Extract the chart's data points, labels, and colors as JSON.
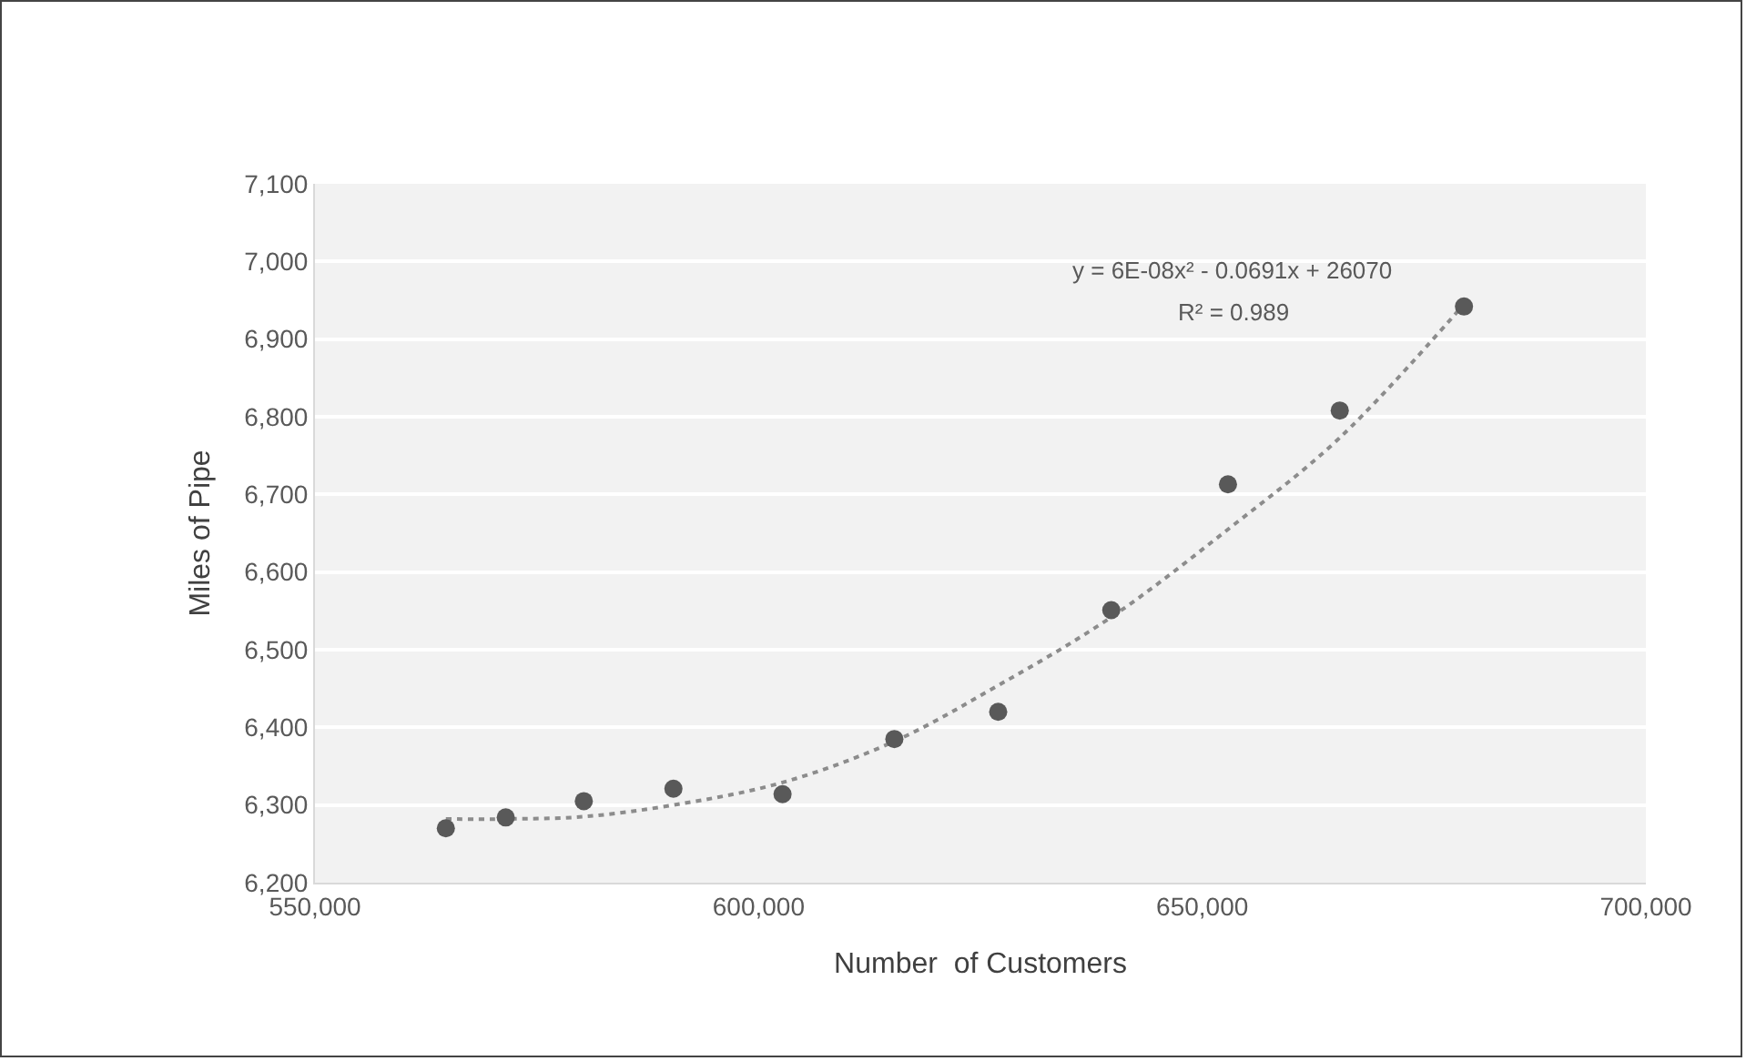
{
  "chart_data": {
    "type": "scatter",
    "xlabel": "Number  of Customers",
    "ylabel": "Miles of Pipe",
    "annotations": [
      "y = 6E-08x² - 0.0691x + 26070",
      "R² = 0.989"
    ],
    "xlim": [
      550000,
      700000
    ],
    "xticks": [
      {
        "value": 550000,
        "label": "550,000"
      },
      {
        "value": 600000,
        "label": "600,000"
      },
      {
        "value": 650000,
        "label": "650,000"
      },
      {
        "value": 700000,
        "label": "700,000"
      }
    ],
    "ylim": [
      6200,
      7100
    ],
    "yticks": [
      {
        "value": 6200,
        "label": "6,200"
      },
      {
        "value": 6300,
        "label": "6,300"
      },
      {
        "value": 6400,
        "label": "6,400"
      },
      {
        "value": 6500,
        "label": "6,500"
      },
      {
        "value": 6600,
        "label": "6,600"
      },
      {
        "value": 6700,
        "label": "6,700"
      },
      {
        "value": 6800,
        "label": "6,800"
      },
      {
        "value": 6900,
        "label": "6,900"
      },
      {
        "value": 7000,
        "label": "7,000"
      },
      {
        "value": 7100,
        "label": "7,100"
      }
    ],
    "grid": "y",
    "marker": "circle",
    "series": [
      {
        "color": "#595959",
        "x": [
          564750,
          571500,
          580300,
          590400,
          602700,
          615300,
          627000,
          639750,
          652900,
          665500,
          679500
        ],
        "values": [
          6270,
          6284,
          6305,
          6321,
          6314,
          6385,
          6420,
          6551,
          6713,
          6808,
          6942
        ]
      },
      {
        "type": "line",
        "color": "#8c8c8c",
        "line_style": "dotted",
        "marker": "none",
        "x": [
          564750,
          571500,
          580300,
          590400,
          602700,
          615300,
          627000,
          639750,
          652900,
          665500,
          679500
        ],
        "values": [
          6282,
          6282,
          6285,
          6300,
          6329,
          6382,
          6454,
          6542,
          6655,
          6773,
          6945
        ]
      }
    ]
  }
}
